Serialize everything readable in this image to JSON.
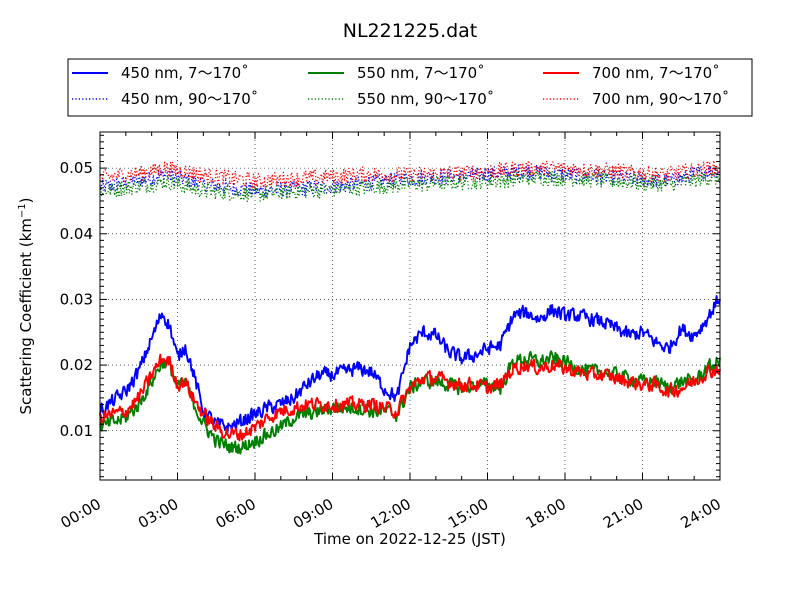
{
  "chart_data": {
    "type": "line",
    "title": "NL221225.dat",
    "xlabel": "Time on 2022-12-25 (JST)",
    "ylabel": "Scattering Coefficient (km",
    "ylabel_sup": "−1",
    "ylabel_close": ")",
    "xlim_hours": [
      0,
      24
    ],
    "ylim": [
      0.0025,
      0.0555
    ],
    "x_ticks": [
      "00:00",
      "03:00",
      "06:00",
      "09:00",
      "12:00",
      "15:00",
      "18:00",
      "21:00",
      "24:00"
    ],
    "y_ticks": [
      0.01,
      0.02,
      0.03,
      0.04,
      0.05
    ],
    "y_tick_labels": [
      "0.01",
      "0.02",
      "0.03",
      "0.04",
      "0.05"
    ],
    "grid": true,
    "legend_placement": "top-center",
    "series": [
      {
        "name": "450 nm, 7～170˚",
        "color": "#0000ff",
        "style": "solid",
        "x": [
          0,
          1,
          1.5,
          2,
          2.4,
          2.7,
          3,
          3.3,
          3.6,
          4,
          4.5,
          5,
          5.5,
          6,
          6.5,
          7,
          7.5,
          8,
          8.5,
          9,
          9.5,
          10,
          10.5,
          11,
          11.5,
          12,
          12.5,
          13,
          13.5,
          14,
          14.5,
          15,
          15.5,
          16,
          16.5,
          17,
          17.5,
          18,
          18.5,
          19,
          19.5,
          20,
          20.5,
          21,
          21.5,
          22,
          22.5,
          23,
          23.5,
          24
        ],
        "y": [
          0.013,
          0.016,
          0.019,
          0.024,
          0.028,
          0.026,
          0.021,
          0.023,
          0.019,
          0.013,
          0.011,
          0.0105,
          0.0115,
          0.0125,
          0.0135,
          0.014,
          0.015,
          0.017,
          0.0185,
          0.0185,
          0.019,
          0.0195,
          0.019,
          0.0165,
          0.015,
          0.023,
          0.025,
          0.0245,
          0.022,
          0.021,
          0.0215,
          0.0225,
          0.023,
          0.0275,
          0.028,
          0.027,
          0.0285,
          0.0275,
          0.0275,
          0.027,
          0.0265,
          0.0255,
          0.0245,
          0.025,
          0.0235,
          0.0225,
          0.0255,
          0.0245,
          0.027,
          0.0305
        ]
      },
      {
        "name": "550 nm, 7～170˚",
        "color": "#008000",
        "style": "solid",
        "x": [
          0,
          1,
          1.5,
          2,
          2.4,
          2.7,
          3,
          3.3,
          3.6,
          4,
          4.5,
          5,
          5.5,
          6,
          6.5,
          7,
          7.5,
          8,
          8.5,
          9,
          9.5,
          10,
          10.5,
          11,
          11.5,
          12,
          12.5,
          13,
          13.5,
          14,
          14.5,
          15,
          15.5,
          16,
          16.5,
          17,
          17.5,
          18,
          18.5,
          19,
          19.5,
          20,
          20.5,
          21,
          21.5,
          22,
          22.5,
          23,
          23.5,
          24
        ],
        "y": [
          0.0105,
          0.012,
          0.014,
          0.0175,
          0.0205,
          0.02,
          0.0165,
          0.0175,
          0.0145,
          0.011,
          0.0085,
          0.0075,
          0.0075,
          0.0085,
          0.0095,
          0.0105,
          0.012,
          0.0125,
          0.013,
          0.0135,
          0.0135,
          0.0135,
          0.013,
          0.013,
          0.0125,
          0.0165,
          0.0175,
          0.0175,
          0.017,
          0.0165,
          0.017,
          0.017,
          0.0165,
          0.0205,
          0.021,
          0.0205,
          0.021,
          0.0205,
          0.0195,
          0.019,
          0.019,
          0.0185,
          0.018,
          0.0175,
          0.0175,
          0.0165,
          0.0175,
          0.0175,
          0.0195,
          0.0205
        ]
      },
      {
        "name": "700 nm, 7～170˚",
        "color": "#ff0000",
        "style": "solid",
        "x": [
          0,
          1,
          1.5,
          2,
          2.4,
          2.7,
          3,
          3.3,
          3.6,
          4,
          4.5,
          5,
          5.5,
          6,
          6.5,
          7,
          7.5,
          8,
          8.5,
          9,
          9.5,
          10,
          10.5,
          11,
          11.5,
          12,
          12.5,
          13,
          13.5,
          14,
          14.5,
          15,
          15.5,
          16,
          16.5,
          17,
          17.5,
          18,
          18.5,
          19,
          19.5,
          20,
          20.5,
          21,
          21.5,
          22,
          22.5,
          23,
          23.5,
          24
        ],
        "y": [
          0.012,
          0.013,
          0.015,
          0.0185,
          0.021,
          0.0205,
          0.017,
          0.0175,
          0.015,
          0.0125,
          0.0105,
          0.0095,
          0.0095,
          0.0105,
          0.012,
          0.013,
          0.0135,
          0.014,
          0.014,
          0.014,
          0.014,
          0.014,
          0.014,
          0.0135,
          0.013,
          0.0165,
          0.018,
          0.018,
          0.0175,
          0.017,
          0.017,
          0.0165,
          0.017,
          0.0195,
          0.02,
          0.0195,
          0.02,
          0.0195,
          0.019,
          0.0185,
          0.0185,
          0.018,
          0.0175,
          0.017,
          0.017,
          0.016,
          0.0165,
          0.0175,
          0.019,
          0.0195
        ]
      },
      {
        "name": "450 nm, 90～170˚",
        "color": "#0000ff",
        "style": "dotted",
        "x": [
          0,
          2,
          2.5,
          4,
          6,
          8,
          10,
          12,
          15,
          16.5,
          18,
          20,
          22,
          23.5,
          24
        ],
        "y": [
          0.047,
          0.0485,
          0.049,
          0.0475,
          0.0465,
          0.047,
          0.0475,
          0.0485,
          0.049,
          0.0495,
          0.049,
          0.0485,
          0.048,
          0.0495,
          0.0495
        ]
      },
      {
        "name": "550 nm, 90～170˚",
        "color": "#008000",
        "style": "dotted",
        "x": [
          0,
          2,
          2.5,
          4,
          6,
          8,
          10,
          12,
          15,
          16.5,
          18,
          20,
          22,
          23.5,
          24
        ],
        "y": [
          0.0465,
          0.0475,
          0.048,
          0.0465,
          0.046,
          0.0465,
          0.047,
          0.0475,
          0.048,
          0.0485,
          0.0485,
          0.048,
          0.0475,
          0.0485,
          0.0485
        ]
      },
      {
        "name": "700 nm, 90～170˚",
        "color": "#ff0000",
        "style": "dotted",
        "x": [
          0,
          2,
          2.5,
          4,
          6,
          8,
          10,
          12,
          15,
          16.5,
          18,
          20,
          22,
          23.5,
          24
        ],
        "y": [
          0.0485,
          0.0495,
          0.05,
          0.049,
          0.048,
          0.0485,
          0.049,
          0.049,
          0.0495,
          0.05,
          0.05,
          0.0495,
          0.049,
          0.05,
          0.05
        ]
      }
    ],
    "noise": {
      "solid": 0.0011,
      "dotted": 0.0012
    }
  }
}
